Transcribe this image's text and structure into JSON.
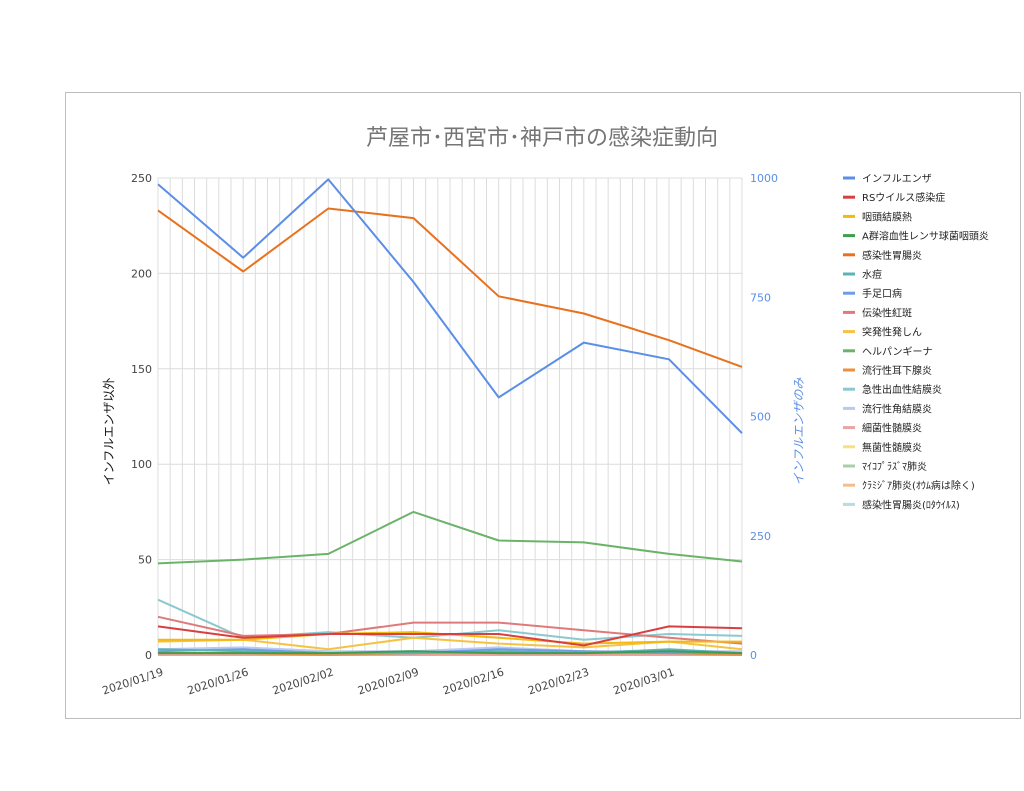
{
  "chart_data": {
    "type": "line",
    "title": "芦屋市･西宮市･神戸市の感染症動向",
    "ylabel_left": "インフルエンザ以外",
    "ylabel_right": "インフルエンザのみ",
    "ylim_left": [
      0,
      250
    ],
    "yticks_left": [
      0,
      50,
      100,
      150,
      200,
      250
    ],
    "ylim_right": [
      0,
      1000
    ],
    "yticks_right": [
      0,
      250,
      500,
      750,
      1000
    ],
    "xlim": [
      "2020-01-19",
      "2020-03-07"
    ],
    "x_tick_labels": [
      "2020/01/19",
      "2020/01/26",
      "2020/02/02",
      "2020/02/09",
      "2020/02/16",
      "2020/02/23",
      "2020/03/01"
    ],
    "x": [
      "2020-01-19",
      "2020-01-26",
      "2020-02-02",
      "2020-02-09",
      "2020-02-16",
      "2020-02-23",
      "2020-03-01",
      "2020-03-07"
    ],
    "grid": true,
    "legend_position": "right",
    "series": [
      {
        "name": "インフルエンザ",
        "color": "#5b8ee6",
        "axis": "right",
        "values": [
          987,
          833,
          997,
          782,
          540,
          655,
          620,
          465
        ]
      },
      {
        "name": "RSウイルス感染症",
        "color": "#d93f3f",
        "axis": "left",
        "values": [
          15,
          9,
          11,
          11,
          11,
          5,
          15,
          14
        ]
      },
      {
        "name": "咽頭結膜熱",
        "color": "#f2b90f",
        "axis": "left",
        "values": [
          8,
          8,
          11,
          12,
          9,
          6,
          7,
          7
        ]
      },
      {
        "name": "A群溶血性レンサ球菌咽頭炎",
        "color": "#3e9e4d",
        "axis": "left",
        "values": [
          1,
          1,
          1,
          2,
          1,
          1,
          2,
          1
        ]
      },
      {
        "name": "感染性胃腸炎",
        "color": "#e8711e",
        "axis": "left",
        "values": [
          233,
          201,
          234,
          229,
          188,
          179,
          165,
          151
        ]
      },
      {
        "name": "水痘",
        "color": "#5ab3b6",
        "axis": "left",
        "values": [
          3,
          2,
          1,
          1,
          2,
          1,
          3,
          1
        ]
      },
      {
        "name": "手足口病",
        "color": "#6f9be8",
        "axis": "left",
        "values": [
          2,
          3,
          1,
          1,
          3,
          2,
          1,
          1
        ]
      },
      {
        "name": "伝染性紅斑",
        "color": "#e07a7a",
        "axis": "left",
        "values": [
          20,
          10,
          11,
          17,
          17,
          13,
          9,
          6
        ]
      },
      {
        "name": "突発性発しん",
        "color": "#f5c242",
        "axis": "left",
        "values": [
          7,
          8,
          3,
          9,
          6,
          4,
          7,
          3
        ]
      },
      {
        "name": "ヘルパンギーナ",
        "color": "#6bb369",
        "axis": "left",
        "values": [
          48,
          50,
          53,
          75,
          60,
          59,
          53,
          49
        ]
      },
      {
        "name": "流行性耳下腺炎",
        "color": "#ed8f3c",
        "axis": "left",
        "values": [
          1,
          1,
          0,
          1,
          1,
          1,
          1,
          0
        ]
      },
      {
        "name": "急性出血性結膜炎",
        "color": "#8cc8cf",
        "axis": "left",
        "values": [
          29,
          9,
          12,
          9,
          13,
          8,
          11,
          10
        ]
      },
      {
        "name": "流行性角結膜炎",
        "color": "#b8c9f2",
        "axis": "left",
        "values": [
          3,
          4,
          2,
          2,
          4,
          2,
          2,
          2
        ]
      },
      {
        "name": "細菌性髄膜炎",
        "color": "#e8a3a3",
        "axis": "left",
        "values": [
          0,
          0,
          0,
          0,
          0,
          0,
          0,
          0
        ]
      },
      {
        "name": "無菌性髄膜炎",
        "color": "#f7df82",
        "axis": "left",
        "values": [
          0,
          0,
          0,
          0,
          0,
          0,
          0,
          0
        ]
      },
      {
        "name": "ﾏｲｺﾌﾟﾗｽﾞﾏ肺炎",
        "color": "#a8cfa8",
        "axis": "left",
        "values": [
          1,
          1,
          1,
          2,
          1,
          1,
          2,
          1
        ]
      },
      {
        "name": "ｸﾗﾐｼﾞｱ肺炎(ｵｳﾑ病は除く)",
        "color": "#f4bd8e",
        "axis": "left",
        "values": [
          0,
          0,
          0,
          0,
          0,
          0,
          0,
          0
        ]
      },
      {
        "name": "感染性胃腸炎(ﾛﾀｳｲﾙｽ)",
        "color": "#b5dee0",
        "axis": "left",
        "values": [
          0,
          0,
          0,
          0,
          0,
          0,
          0,
          0
        ]
      }
    ]
  }
}
